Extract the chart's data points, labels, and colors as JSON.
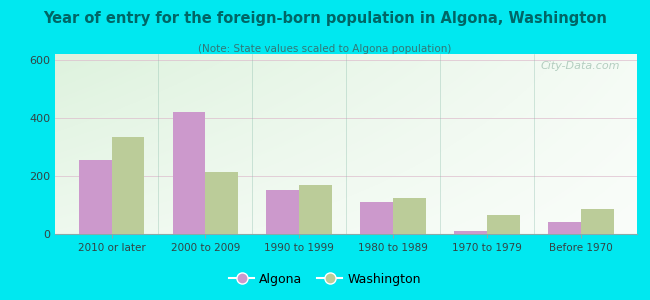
{
  "title": "Year of entry for the foreign-born population in Algona, Washington",
  "subtitle": "(Note: State values scaled to Algona population)",
  "categories": [
    "2010 or later",
    "2000 to 2009",
    "1990 to 1999",
    "1980 to 1989",
    "1970 to 1979",
    "Before 1970"
  ],
  "algona_values": [
    255,
    420,
    150,
    110,
    10,
    40
  ],
  "washington_values": [
    335,
    215,
    170,
    125,
    65,
    85
  ],
  "algona_color": "#cc99cc",
  "washington_color": "#bbcc99",
  "ylim": [
    0,
    620
  ],
  "yticks": [
    0,
    200,
    400,
    600
  ],
  "background_outer": "#00e8f0",
  "bar_width": 0.35,
  "legend_algona": "Algona",
  "legend_washington": "Washington",
  "watermark": "City-Data.com"
}
